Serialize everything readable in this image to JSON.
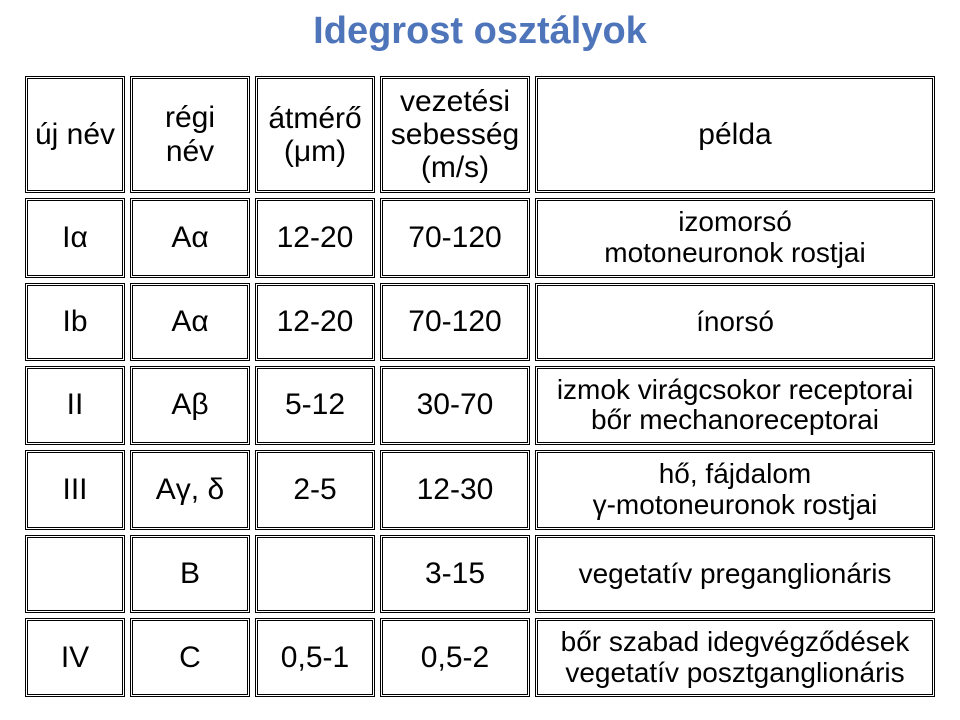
{
  "title": "Idegrost osztályok",
  "columns": {
    "new_name": "új név",
    "old_name": "régi név",
    "diameter": "átmérő\n(μm)",
    "speed": "vezetési\nsebesség\n(m/s)",
    "example": "példa"
  },
  "rows": [
    {
      "new_name": "Iα",
      "old_name": "Aα",
      "diameter": "12-20",
      "speed": "70-120",
      "example": "izomorsó\nmotoneuronok rostjai"
    },
    {
      "new_name": "Ib",
      "old_name": "Aα",
      "diameter": "12-20",
      "speed": "70-120",
      "example": "ínorsó"
    },
    {
      "new_name": "II",
      "old_name": "Aβ",
      "diameter": "5-12",
      "speed": "30-70",
      "example": "izmok virágcsokor receptorai\nbőr mechanoreceptorai"
    },
    {
      "new_name": "III",
      "old_name": "Aγ, δ",
      "diameter": "2-5",
      "speed": "12-30",
      "example": "hő, fájdalom\nγ-motoneuronok rostjai"
    },
    {
      "new_name": "",
      "old_name": "B",
      "diameter": "",
      "speed": "3-15",
      "example": "vegetatív preganglionáris"
    },
    {
      "new_name": "IV",
      "old_name": "C",
      "diameter": "0,5-1",
      "speed": "0,5-2",
      "example": "bőr szabad idegvégződések\nvegetatív posztganglionáris"
    }
  ],
  "colors": {
    "title_color": "#4e74ba",
    "text_color": "#000000",
    "background": "#ffffff",
    "border_color": "#000000"
  },
  "font": {
    "family": "Comic Sans MS",
    "title_size": 38,
    "cell_size": 30
  }
}
